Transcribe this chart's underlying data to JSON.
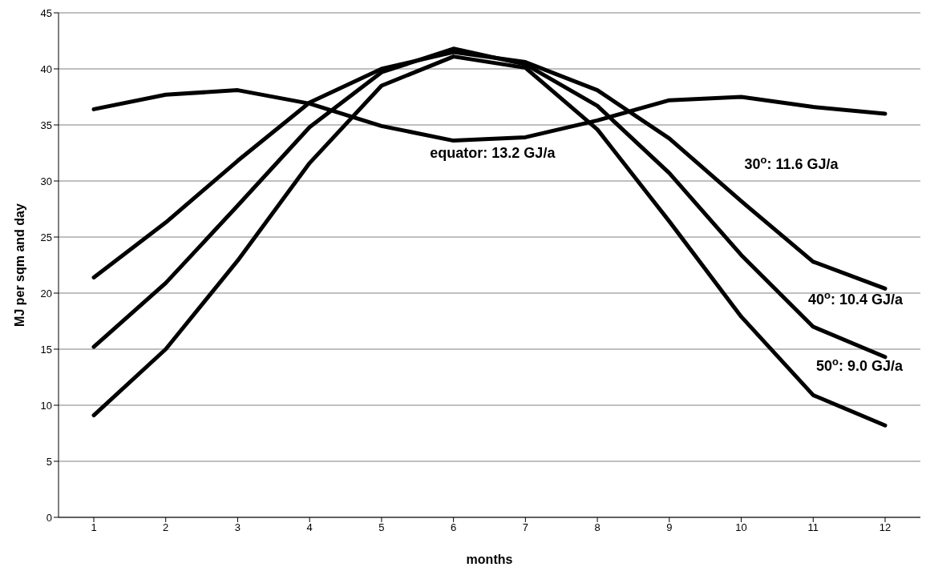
{
  "chart_data": {
    "type": "line",
    "xlabel": "months",
    "ylabel": "MJ per sqm and day",
    "categories": [
      "1",
      "2",
      "3",
      "4",
      "5",
      "6",
      "7",
      "8",
      "9",
      "10",
      "11",
      "12"
    ],
    "series": [
      {
        "name": "equator: 13.2 GJ/a",
        "color": "#000000",
        "values": [
          36.4,
          37.7,
          38.1,
          36.9,
          34.9,
          33.6,
          33.9,
          35.4,
          37.2,
          37.5,
          36.6,
          36.0
        ]
      },
      {
        "name": "30$^{o}$: 11.6 GJ/a",
        "color": "#000000",
        "values": [
          21.4,
          26.3,
          31.8,
          37.0,
          40.0,
          41.5,
          40.6,
          38.1,
          33.8,
          28.2,
          22.8,
          20.4
        ]
      },
      {
        "name": "40$^{o}$: 10.4 GJ/a",
        "color": "#000000",
        "values": [
          15.2,
          20.9,
          27.8,
          34.8,
          39.7,
          41.8,
          40.4,
          36.7,
          30.7,
          23.4,
          17.0,
          14.3
        ]
      },
      {
        "name": "50$^{o}$: 9.0 GJ/a",
        "color": "#000000",
        "values": [
          9.1,
          15.0,
          22.9,
          31.6,
          38.5,
          41.1,
          40.1,
          34.6,
          26.4,
          17.9,
          10.9,
          8.2
        ]
      }
    ],
    "ylim": [
      0,
      45
    ],
    "yticks": [
      0,
      5,
      10,
      15,
      20,
      25,
      30,
      35,
      40,
      45
    ],
    "grid": "y"
  }
}
